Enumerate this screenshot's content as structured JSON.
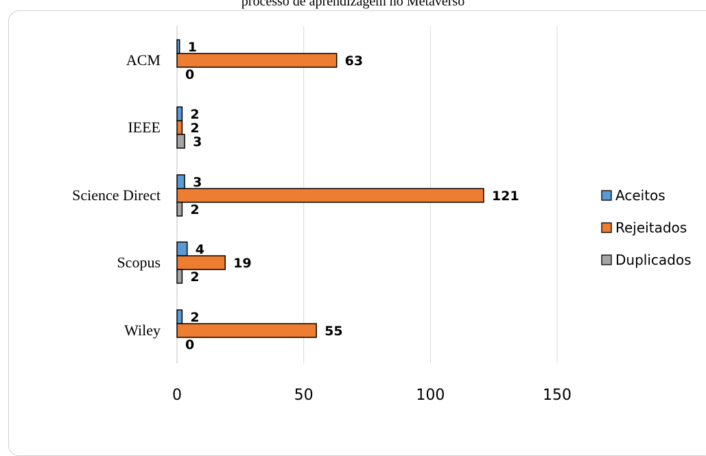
{
  "title_fragment": "processo de aprendizagem no Metaverso",
  "chart_data": {
    "type": "bar",
    "orientation": "horizontal",
    "categories": [
      "ACM",
      "IEEE",
      "Science Direct",
      "Scopus",
      "Wiley"
    ],
    "series": [
      {
        "name": "Aceitos",
        "values": [
          1,
          2,
          3,
          4,
          2
        ],
        "color": "#5b9bd5"
      },
      {
        "name": "Rejeitados",
        "values": [
          63,
          2,
          121,
          19,
          55
        ],
        "color": "#ed7d31"
      },
      {
        "name": "Duplicados",
        "values": [
          0,
          3,
          2,
          2,
          0
        ],
        "color": "#a5a5a5"
      }
    ],
    "xlim": [
      0,
      150
    ],
    "x_ticks": [
      "0",
      "50",
      "100",
      "150"
    ],
    "grid": true,
    "legend_position": "right"
  }
}
